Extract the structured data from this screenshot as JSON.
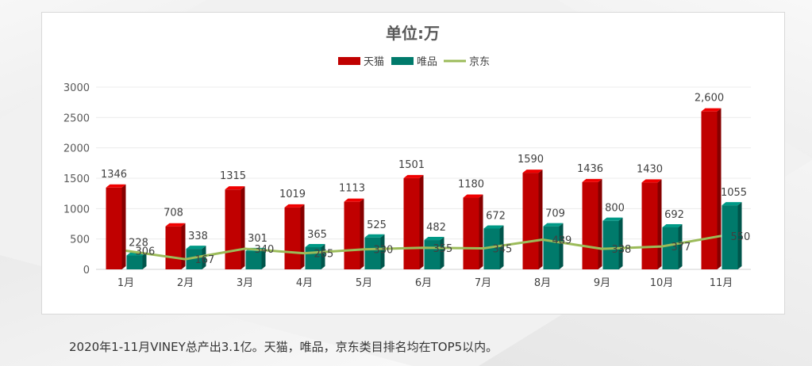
{
  "caption": "2020年1-11月VINEY总产出3.1亿。天猫，唯品，京东类目排名均在TOP5以内。",
  "colors": {
    "tmall": "#c00000",
    "vip": "#007a6b",
    "jd": "#9bbb59"
  },
  "chart_data": {
    "type": "bar",
    "title": "单位:万",
    "categories": [
      "1月",
      "2月",
      "3月",
      "4月",
      "5月",
      "6月",
      "7月",
      "8月",
      "9月",
      "10月",
      "11月"
    ],
    "ylim": [
      0,
      3000
    ],
    "y_ticks": [
      "0",
      "500",
      "1000",
      "1500",
      "2000",
      "2500",
      "3000"
    ],
    "grid": true,
    "legend_position": "top",
    "series": [
      {
        "name": "天猫",
        "type": "bar",
        "values": [
          1346,
          708,
          1315,
          1019,
          1113,
          1501,
          1180,
          1590,
          1436,
          1430,
          2600
        ],
        "labels": [
          "1346",
          "708",
          "1315",
          "1019",
          "1113",
          "1501",
          "1180",
          "1590",
          "1436",
          "1430",
          "2,600"
        ]
      },
      {
        "name": "唯品",
        "type": "bar",
        "values": [
          228,
          338,
          301,
          365,
          525,
          482,
          672,
          709,
          800,
          692,
          1055
        ],
        "labels": [
          "228",
          "338",
          "301",
          "365",
          "525",
          "482",
          "672",
          "709",
          "800",
          "692",
          "1055"
        ]
      },
      {
        "name": "京东",
        "type": "line",
        "values": [
          306,
          167,
          340,
          265,
          330,
          355,
          345,
          489,
          338,
          377,
          550
        ],
        "labels": [
          "306",
          "167",
          "340",
          "265",
          "330",
          "355",
          "345",
          "489",
          "338",
          "377",
          "550"
        ]
      }
    ]
  }
}
